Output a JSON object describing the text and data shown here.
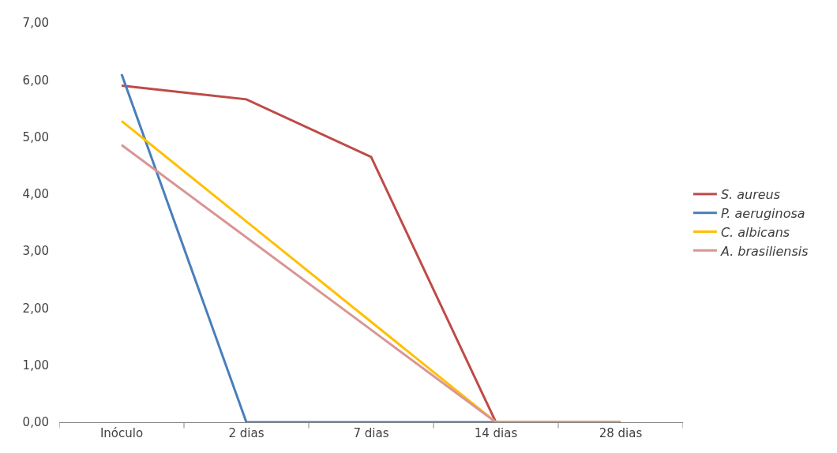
{
  "chart_data": {
    "type": "line",
    "categories": [
      "Inóculo",
      "2 dias",
      "7 dias",
      "14 dias",
      "28 dias"
    ],
    "series": [
      {
        "name": "S. aureus",
        "color": "#be4b48",
        "values": [
          5.9,
          5.66,
          4.65,
          0,
          0
        ]
      },
      {
        "name": "P. aeruginosa",
        "color": "#4a7ebb",
        "values": [
          6.1,
          0,
          0,
          0,
          0
        ]
      },
      {
        "name": "C. albicans",
        "color": "#ffc000",
        "values": [
          5.28,
          3.52,
          1.76,
          0,
          0
        ]
      },
      {
        "name": "A. brasiliensis",
        "color": "#d99694",
        "values": [
          4.86,
          3.24,
          1.62,
          0,
          0
        ]
      }
    ],
    "ylim": [
      0,
      7
    ],
    "yticks": [
      {
        "value": 0,
        "label": "0,00"
      },
      {
        "value": 1,
        "label": "1,00"
      },
      {
        "value": 2,
        "label": "2,00"
      },
      {
        "value": 3,
        "label": "3,00"
      },
      {
        "value": 4,
        "label": "4,00"
      },
      {
        "value": 5,
        "label": "5,00"
      },
      {
        "value": 6,
        "label": "6,00"
      },
      {
        "value": 7,
        "label": "7,00"
      }
    ],
    "legend": "right",
    "marker": "none",
    "line_style": "solid"
  }
}
